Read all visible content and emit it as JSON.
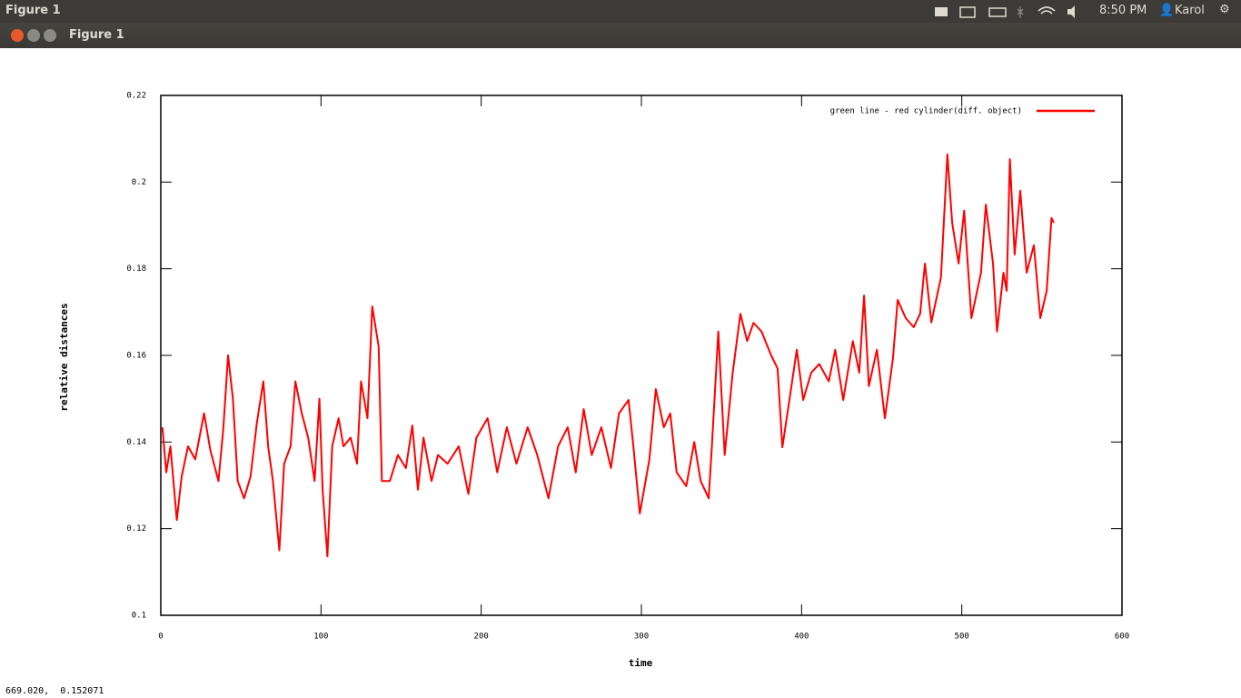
{
  "top_bar": {
    "app_name": "Figure 1",
    "clock": "8:50 PM",
    "user": "Karol"
  },
  "window": {
    "title": "Figure 1"
  },
  "status_bar": {
    "coordinates": "669.020,  0.152071"
  },
  "chart_data": {
    "type": "line",
    "x_label": "time",
    "y_label": "relative distances",
    "x": [
      1,
      3.4,
      6,
      10,
      13,
      17,
      21.5,
      27,
      31,
      36,
      39,
      42,
      45,
      48,
      52,
      56,
      60,
      64,
      67,
      70,
      74,
      77,
      81,
      84,
      88,
      92,
      96,
      99,
      101,
      104,
      107,
      111,
      114,
      118.5,
      122.5,
      125,
      129,
      132,
      136,
      138,
      143,
      148,
      153,
      157,
      160.5,
      164,
      169,
      173,
      179,
      186,
      192,
      197,
      204,
      210,
      216,
      222,
      229,
      235,
      242,
      248,
      254,
      259,
      264,
      269,
      275,
      281,
      286,
      292,
      295,
      299,
      305,
      309,
      314,
      318,
      322,
      328,
      333,
      337,
      342,
      344,
      348,
      352,
      357,
      361.8,
      366,
      370,
      375,
      381,
      385,
      388,
      392,
      397,
      401,
      406,
      411,
      417,
      421,
      426,
      432,
      436,
      439,
      442,
      447,
      452,
      457,
      460,
      465,
      470,
      474,
      477,
      481,
      487,
      491,
      494,
      498,
      501.5,
      506,
      512,
      515,
      519.5,
      522,
      526,
      528,
      530,
      533,
      536.5,
      540.5,
      545,
      549,
      553,
      556,
      557.5
    ],
    "series": [
      {
        "name": "green line - red cylinder(diff. object)",
        "color": "#ff0000",
        "values": [
          0.1434,
          0.133,
          0.139,
          0.122,
          0.132,
          0.139,
          0.136,
          0.1466,
          0.138,
          0.131,
          0.143,
          0.16,
          0.15,
          0.131,
          0.127,
          0.132,
          0.1445,
          0.154,
          0.139,
          0.131,
          0.115,
          0.135,
          0.139,
          0.154,
          0.1466,
          0.141,
          0.131,
          0.15,
          0.129,
          0.1136,
          0.139,
          0.1455,
          0.139,
          0.141,
          0.135,
          0.154,
          0.1455,
          0.1713,
          0.162,
          0.131,
          0.131,
          0.137,
          0.134,
          0.1438,
          0.129,
          0.141,
          0.131,
          0.137,
          0.135,
          0.139,
          0.128,
          0.141,
          0.1455,
          0.133,
          0.1434,
          0.135,
          0.1434,
          0.137,
          0.127,
          0.139,
          0.1434,
          0.133,
          0.1476,
          0.137,
          0.1434,
          0.134,
          0.1466,
          0.1497,
          0.139,
          0.1235,
          0.136,
          0.1522,
          0.1434,
          0.1466,
          0.133,
          0.1298,
          0.14,
          0.131,
          0.127,
          0.139,
          0.1655,
          0.137,
          0.156,
          0.1696,
          0.1633,
          0.1675,
          0.1655,
          0.16,
          0.157,
          0.1388,
          0.1487,
          0.1613,
          0.1497,
          0.156,
          0.158,
          0.154,
          0.1613,
          0.1497,
          0.1633,
          0.156,
          0.1738,
          0.1529,
          0.1613,
          0.1455,
          0.1592,
          0.1728,
          0.1686,
          0.1665,
          0.1696,
          0.1812,
          0.1676,
          0.178,
          0.2064,
          0.1906,
          0.1812,
          0.1934,
          0.1686,
          0.1791,
          0.1948,
          0.1812,
          0.1655,
          0.1791,
          0.1749,
          0.2053,
          0.1833,
          0.198,
          0.1791,
          0.1854,
          0.1686,
          0.1749,
          0.1917,
          0.1906
        ]
      }
    ],
    "xlim": [
      0,
      600
    ],
    "xticks": [
      0,
      100,
      200,
      300,
      400,
      500,
      600
    ],
    "ylim": [
      0.1,
      0.22
    ],
    "yticks": [
      0.1,
      0.12,
      0.14,
      0.16,
      0.18,
      0.2,
      0.22
    ],
    "legend": "top-right",
    "grid": false
  }
}
